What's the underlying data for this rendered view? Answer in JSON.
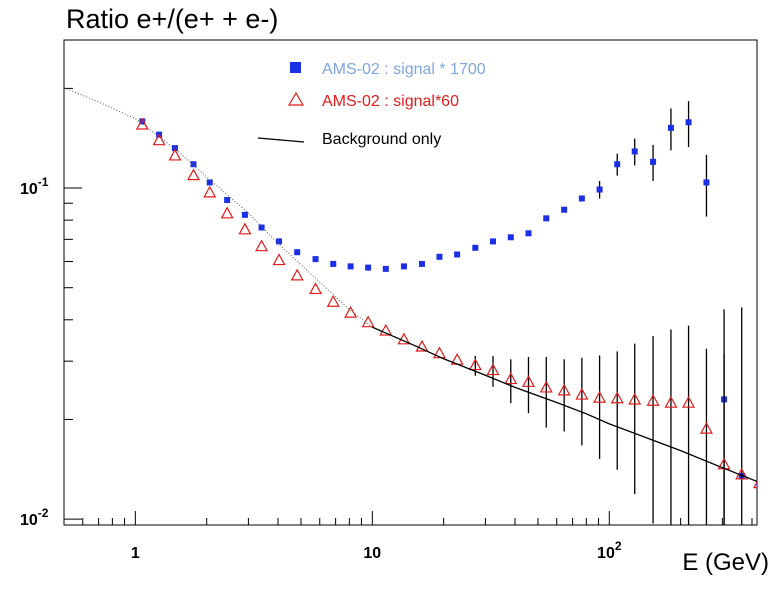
{
  "chart_data": {
    "type": "scatter",
    "title": "Ratio e+/(e+ + e-)",
    "xlabel": "E (GeV)",
    "ylabel": "",
    "x_scale": "log",
    "y_scale": "log",
    "xlim": [
      0.5,
      420
    ],
    "ylim": [
      0.0096,
      0.28
    ],
    "grid": false,
    "legend_position": "top-center",
    "x_ticks": [
      {
        "value": 1,
        "label": "1"
      },
      {
        "value": 10,
        "label": "10"
      },
      {
        "value": 100,
        "label": "10^2"
      }
    ],
    "y_ticks": [
      {
        "value": 0.1,
        "label": "10^-1"
      },
      {
        "value": 0.01,
        "label": "10^-2"
      }
    ],
    "series": [
      {
        "name": "AMS-02 : signal * 1700",
        "marker": "filled-square",
        "color": "#1a2fe6",
        "label_color": "#7fa6e0",
        "x": [
          1.07,
          1.26,
          1.47,
          1.76,
          2.06,
          2.44,
          2.9,
          3.41,
          4.04,
          4.82,
          5.76,
          6.84,
          8.1,
          9.6,
          11.4,
          13.6,
          16.2,
          19.2,
          22.8,
          27.2,
          32.3,
          38.4,
          45.6,
          54.2,
          64.5,
          76.6,
          91,
          108,
          128,
          153,
          182,
          216,
          257,
          305,
          362,
          430
        ],
        "y": [
          0.159,
          0.145,
          0.132,
          0.118,
          0.104,
          0.092,
          0.083,
          0.076,
          0.069,
          0.064,
          0.061,
          0.059,
          0.058,
          0.0575,
          0.057,
          0.058,
          0.059,
          0.062,
          0.063,
          0.066,
          0.069,
          0.071,
          0.073,
          0.081,
          0.086,
          0.093,
          0.099,
          0.118,
          0.129,
          0.12,
          0.152,
          0.158,
          0.104,
          0.023,
          0.0135,
          0.0128
        ],
        "err": [
          0,
          0,
          0,
          0,
          0,
          0,
          0,
          0,
          0,
          0,
          0,
          0,
          0,
          0,
          0,
          0,
          0,
          0,
          0,
          0,
          0,
          0,
          0,
          0,
          0,
          0,
          0.006,
          0.009,
          0.012,
          0.015,
          0.022,
          0.025,
          0.022,
          0.02,
          0,
          0
        ]
      },
      {
        "name": "AMS-02 :  signal*60",
        "marker": "open-triangle",
        "color": "#e01c1c",
        "label_color": "#e01c1c",
        "x": [
          1.07,
          1.26,
          1.47,
          1.76,
          2.06,
          2.44,
          2.9,
          3.41,
          4.04,
          4.82,
          5.76,
          6.84,
          8.1,
          9.6,
          11.4,
          13.6,
          16.2,
          19.2,
          22.8,
          27.2,
          32.3,
          38.4,
          45.6,
          54.2,
          64.5,
          76.6,
          91,
          108,
          128,
          153,
          182,
          216,
          257,
          305,
          362,
          430
        ],
        "y": [
          0.155,
          0.139,
          0.125,
          0.109,
          0.0967,
          0.0836,
          0.0748,
          0.0665,
          0.0604,
          0.0543,
          0.0494,
          0.0452,
          0.0419,
          0.0392,
          0.037,
          0.0348,
          0.0331,
          0.0316,
          0.0302,
          0.0291,
          0.0281,
          0.0264,
          0.0259,
          0.0249,
          0.0244,
          0.0237,
          0.0232,
          0.0231,
          0.0229,
          0.0227,
          0.0224,
          0.0224,
          0.0187,
          0.0146,
          0.0136,
          0.0128
        ],
        "err": [
          0,
          0,
          0,
          0,
          0,
          0,
          0,
          0,
          0,
          0,
          0,
          0,
          0,
          0,
          0,
          0,
          0,
          0,
          0,
          0.002,
          0.003,
          0.004,
          0.005,
          0.006,
          0.006,
          0.007,
          0.008,
          0.009,
          0.011,
          0.013,
          0.015,
          0.016,
          0.014,
          0.017,
          0.03,
          0.03
        ]
      },
      {
        "name": "Background only",
        "marker": "line",
        "color": "#000000",
        "label_color": "#000000",
        "x": [
          0.5,
          0.7,
          1,
          1.5,
          2,
          3,
          4,
          6,
          8,
          10,
          15,
          20,
          30,
          40,
          60,
          80,
          100,
          150,
          200,
          300,
          420
        ],
        "y": [
          0.201,
          0.182,
          0.162,
          0.13,
          0.108,
          0.084,
          0.068,
          0.052,
          0.043,
          0.038,
          0.0335,
          0.0305,
          0.0272,
          0.025,
          0.0225,
          0.0208,
          0.0194,
          0.0174,
          0.0161,
          0.0143,
          0.013
        ]
      }
    ]
  }
}
